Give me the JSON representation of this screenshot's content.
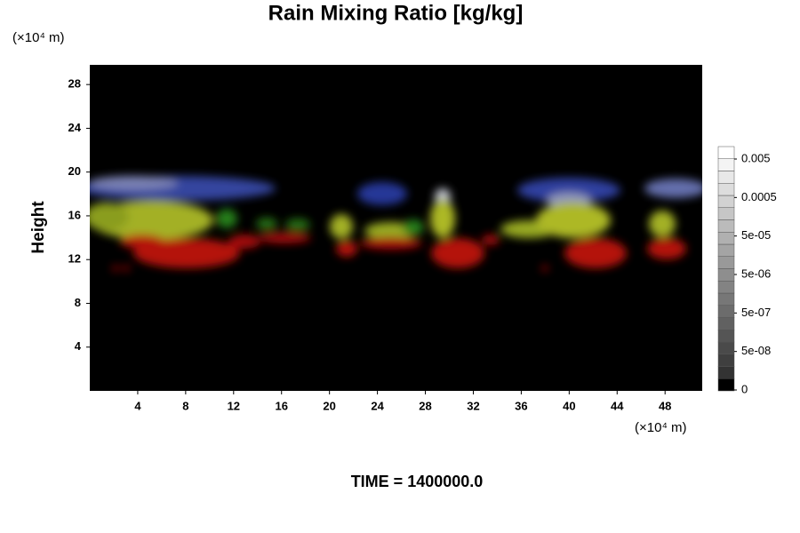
{
  "chart_data": {
    "type": "volume-render",
    "title": "Rain Mixing Ratio [kg/kg]",
    "y_label": "Height",
    "y_unit": "(×10⁴ m)",
    "x_unit": "(×10⁴ m)",
    "footer": "TIME = 1400000.0",
    "xlim": [
      0,
      51.1
    ],
    "xticks": [
      4,
      8,
      12,
      16,
      20,
      24,
      28,
      32,
      36,
      40,
      44,
      48
    ],
    "ylim": [
      0,
      29.8
    ],
    "yticks": [
      4,
      8,
      12,
      16,
      20,
      24,
      28
    ],
    "colorbar_ticks": [
      0,
      {
        "value": 5e-08,
        "label": "5e-08"
      },
      {
        "value": 5e-07,
        "label": "5e-07"
      },
      {
        "value": 5e-06,
        "label": "5e-06"
      },
      {
        "value": 5e-05,
        "label": "5e-05"
      },
      0.0005,
      0.005
    ]
  }
}
